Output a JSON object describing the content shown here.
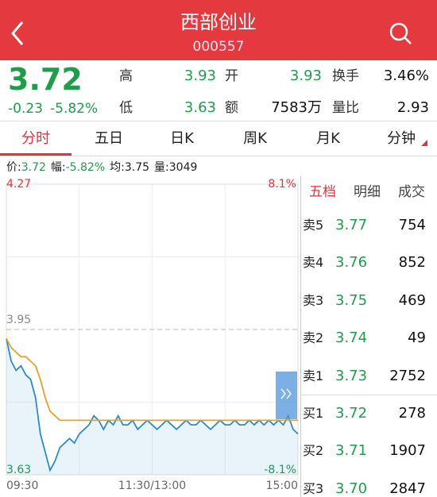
{
  "header": {
    "title": "西部创业",
    "code": "000557"
  },
  "quote": {
    "price": "3.72",
    "change": "-0.23",
    "change_pct": "-5.82%",
    "stats": [
      [
        "高",
        "3.93"
      ],
      [
        "开",
        "3.93"
      ],
      [
        "换手",
        "3.46%"
      ],
      [
        "低",
        "3.63"
      ],
      [
        "额",
        "7583万"
      ],
      [
        "量比",
        "2.93"
      ]
    ]
  },
  "tabs": [
    "分时",
    "五日",
    "日K",
    "周K",
    "月K",
    "分钟"
  ],
  "info_bar": [
    [
      "价:",
      "3.72"
    ],
    [
      "幅:",
      "-5.82%"
    ],
    [
      "均:",
      "3.75"
    ],
    [
      "量:",
      "3049"
    ]
  ],
  "chart": {
    "type": "line",
    "ylim": [
      3.63,
      4.27
    ],
    "yticks": [
      4.27,
      3.95,
      3.63
    ],
    "y2lim": [
      -8.1,
      8.1
    ],
    "y2ticks": [
      {
        "value": 8.1,
        "label": "8.1%"
      },
      {
        "value": -8.1,
        "label": "-8.1%"
      }
    ],
    "x_labels": [
      "09:30",
      "11:30/13:00",
      "15:00"
    ],
    "series": [
      {
        "color": "#2a8ad0",
        "values": [
          3.93,
          3.88,
          3.86,
          3.87,
          3.85,
          3.84,
          3.8,
          3.72,
          3.68,
          3.64,
          3.66,
          3.69,
          3.7,
          3.71,
          3.7,
          3.72,
          3.73,
          3.74,
          3.76,
          3.75,
          3.73,
          3.75,
          3.74,
          3.76,
          3.74,
          3.74,
          3.75,
          3.73,
          3.74,
          3.75,
          3.74,
          3.73,
          3.74,
          3.75,
          3.74,
          3.73,
          3.74,
          3.75,
          3.74,
          3.74,
          3.75,
          3.74,
          3.73,
          3.74,
          3.75,
          3.74,
          3.74,
          3.75,
          3.74,
          3.74,
          3.75,
          3.74,
          3.75,
          3.74,
          3.75,
          3.74,
          3.75,
          3.74,
          3.76,
          3.73,
          3.72
        ]
      },
      {
        "color": "#e8a02c",
        "values": [
          3.93,
          3.91,
          3.9,
          3.89,
          3.89,
          3.88,
          3.87,
          3.84,
          3.8,
          3.77,
          3.76,
          3.75,
          3.75,
          3.75,
          3.75,
          3.75,
          3.75,
          3.75,
          3.75,
          3.75,
          3.75,
          3.75,
          3.75,
          3.75,
          3.75,
          3.75,
          3.75,
          3.75,
          3.75,
          3.75,
          3.75,
          3.75,
          3.75,
          3.75,
          3.75,
          3.75,
          3.75,
          3.75,
          3.75,
          3.75,
          3.75,
          3.75,
          3.75,
          3.75,
          3.75,
          3.75,
          3.75,
          3.75,
          3.75,
          3.75,
          3.75,
          3.75,
          3.75,
          3.75,
          3.75,
          3.75,
          3.75,
          3.75,
          3.75,
          3.75,
          3.75
        ]
      }
    ]
  },
  "order_book": {
    "tabs": [
      "五档",
      "明细",
      "成交"
    ],
    "rows": [
      [
        "卖5",
        "3.77",
        "754"
      ],
      [
        "卖4",
        "3.76",
        "852"
      ],
      [
        "卖3",
        "3.75",
        "469"
      ],
      [
        "卖2",
        "3.74",
        "49"
      ],
      [
        "卖1",
        "3.73",
        "2752"
      ],
      [
        "买1",
        "3.72",
        "278"
      ],
      [
        "买2",
        "3.71",
        "1907"
      ],
      [
        "买3",
        "3.70",
        "2847"
      ]
    ]
  }
}
